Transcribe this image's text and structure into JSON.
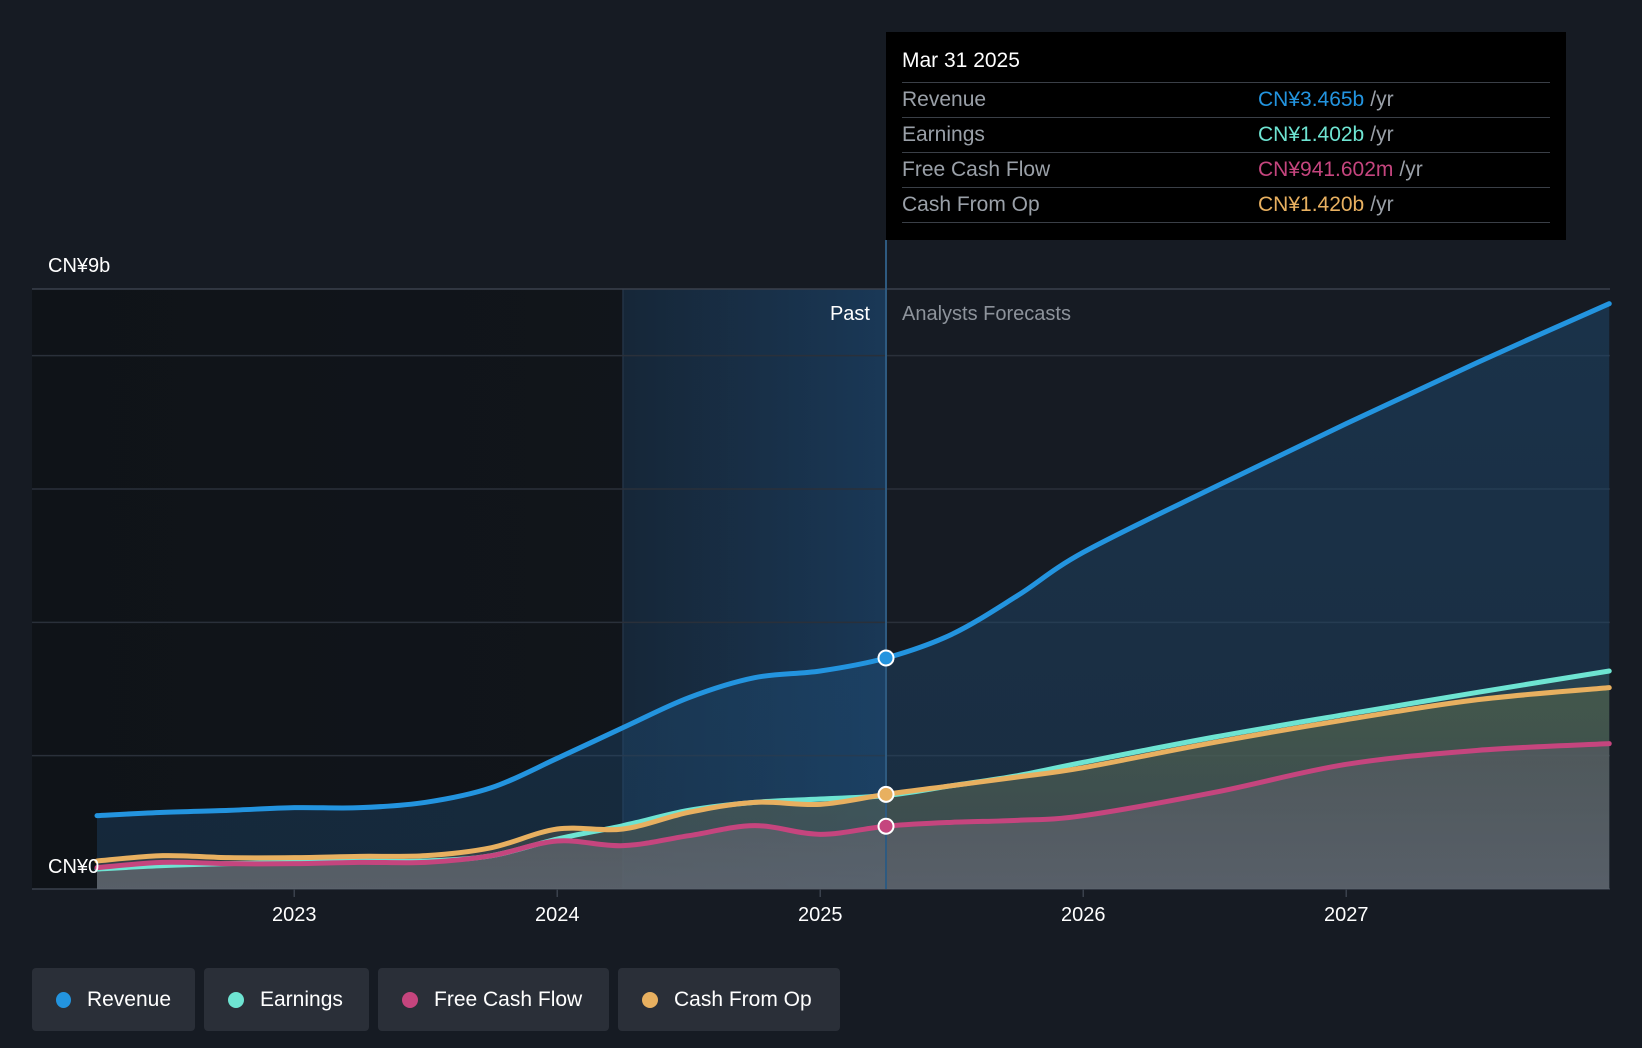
{
  "colors": {
    "revenue": "#2394df",
    "earnings": "#6ee4d2",
    "fcf": "#c5457e",
    "cfo": "#e8b060",
    "grid": "#2a303a",
    "background": "#161b23"
  },
  "tooltip": {
    "date": "Mar 31 2025",
    "rows": [
      {
        "label": "Revenue",
        "value": "CN¥3.465b",
        "unit": "/yr"
      },
      {
        "label": "Earnings",
        "value": "CN¥1.402b",
        "unit": "/yr"
      },
      {
        "label": "Free Cash Flow",
        "value": "CN¥941.602m",
        "unit": "/yr"
      },
      {
        "label": "Cash From Op",
        "value": "CN¥1.420b",
        "unit": "/yr"
      }
    ]
  },
  "legend": [
    {
      "label": "Revenue",
      "color_key": "revenue"
    },
    {
      "label": "Earnings",
      "color_key": "earnings"
    },
    {
      "label": "Free Cash Flow",
      "color_key": "fcf"
    },
    {
      "label": "Cash From Op",
      "color_key": "cfo"
    }
  ],
  "chart_data": {
    "type": "line",
    "title": "",
    "xlabel": "",
    "ylabel": "",
    "ylim": [
      0,
      9
    ],
    "y_unit": "CN¥ billions",
    "y_tick_labels": {
      "top": "CN¥9b",
      "bottom": "CN¥0"
    },
    "gridlines": [
      0,
      2,
      4,
      6,
      8,
      9
    ],
    "x_range": [
      2022.25,
      2028.0
    ],
    "x_ticks": [
      {
        "value": 2023,
        "label": "2023"
      },
      {
        "value": 2024,
        "label": "2024"
      },
      {
        "value": 2025,
        "label": "2025"
      },
      {
        "value": 2026,
        "label": "2026"
      },
      {
        "value": 2027,
        "label": "2027"
      }
    ],
    "past_label": "Past",
    "forecast_label": "Analysts Forecasts",
    "present_x": 2025.25,
    "highlight_start_x": 2024.25,
    "series": [
      {
        "name": "Revenue",
        "key": "revenue",
        "x": [
          2022.25,
          2022.5,
          2022.75,
          2023.0,
          2023.25,
          2023.5,
          2023.75,
          2024.0,
          2024.25,
          2024.5,
          2024.75,
          2025.0,
          2025.25,
          2025.5,
          2025.75,
          2026.0,
          2026.5,
          2027.0,
          2027.5,
          2028.0
        ],
        "values": [
          1.1,
          1.15,
          1.18,
          1.22,
          1.22,
          1.3,
          1.52,
          1.96,
          2.42,
          2.87,
          3.17,
          3.27,
          3.465,
          3.82,
          4.4,
          5.05,
          6.03,
          6.98,
          7.9,
          8.78
        ]
      },
      {
        "name": "Earnings",
        "key": "earnings",
        "x": [
          2022.25,
          2022.5,
          2022.75,
          2023.0,
          2023.25,
          2023.5,
          2023.75,
          2024.0,
          2024.25,
          2024.5,
          2024.75,
          2025.0,
          2025.25,
          2025.5,
          2025.75,
          2026.0,
          2026.5,
          2027.0,
          2027.5,
          2028.0
        ],
        "values": [
          0.3,
          0.35,
          0.38,
          0.4,
          0.42,
          0.42,
          0.5,
          0.75,
          0.95,
          1.18,
          1.3,
          1.35,
          1.402,
          1.55,
          1.7,
          1.9,
          2.28,
          2.62,
          2.95,
          3.27
        ]
      },
      {
        "name": "Free Cash Flow",
        "key": "fcf",
        "x": [
          2022.25,
          2022.5,
          2022.75,
          2023.0,
          2023.25,
          2023.5,
          2023.75,
          2024.0,
          2024.25,
          2024.5,
          2024.75,
          2025.0,
          2025.25,
          2025.5,
          2025.75,
          2026.0,
          2026.5,
          2027.0,
          2027.5,
          2028.0
        ],
        "values": [
          0.32,
          0.4,
          0.38,
          0.38,
          0.4,
          0.4,
          0.5,
          0.72,
          0.65,
          0.8,
          0.95,
          0.82,
          0.942,
          1.0,
          1.03,
          1.1,
          1.45,
          1.87,
          2.08,
          2.18
        ]
      },
      {
        "name": "Cash From Op",
        "key": "cfo",
        "x": [
          2022.25,
          2022.5,
          2022.75,
          2023.0,
          2023.25,
          2023.5,
          2023.75,
          2024.0,
          2024.25,
          2024.5,
          2024.75,
          2025.0,
          2025.25,
          2025.5,
          2025.75,
          2026.0,
          2026.5,
          2027.0,
          2027.5,
          2028.0
        ],
        "values": [
          0.42,
          0.5,
          0.47,
          0.47,
          0.49,
          0.5,
          0.62,
          0.9,
          0.9,
          1.15,
          1.3,
          1.27,
          1.42,
          1.55,
          1.68,
          1.82,
          2.2,
          2.54,
          2.84,
          3.02
        ]
      }
    ]
  }
}
